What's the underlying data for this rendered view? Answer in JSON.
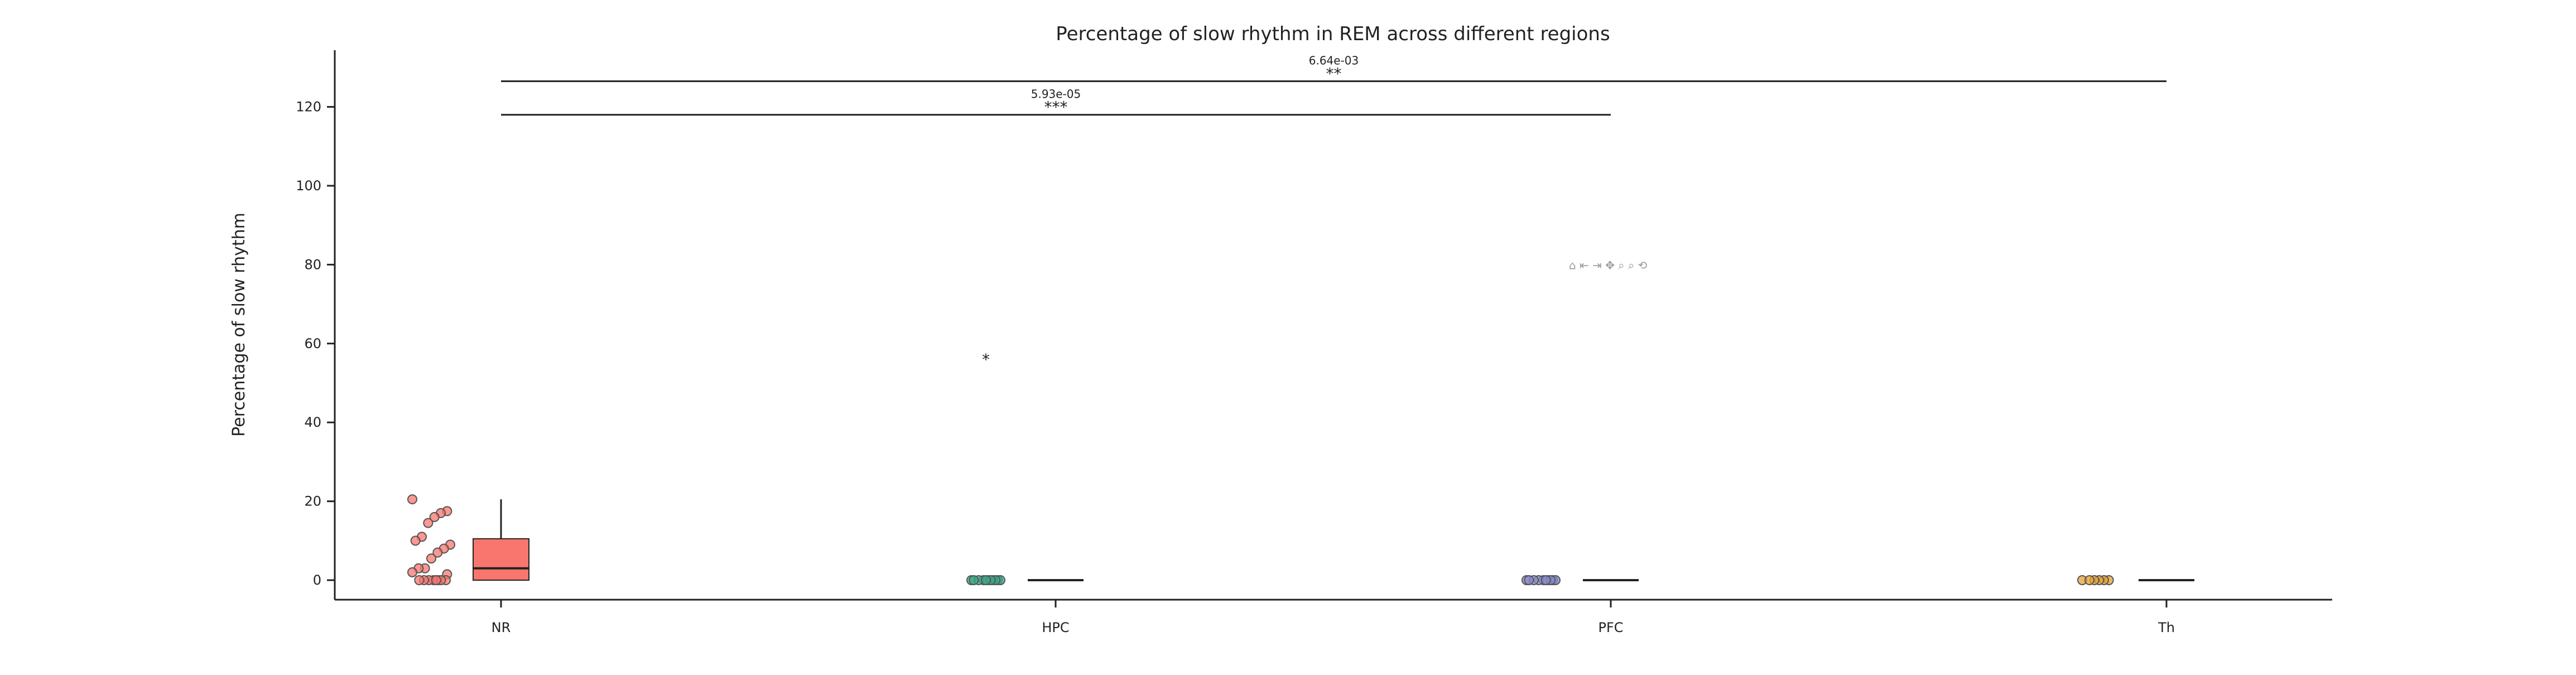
{
  "chart_data": {
    "type": "box",
    "title": "Percentage of slow rhythm in REM across different regions",
    "xlabel": "",
    "ylabel": "Percentage of slow rhythm",
    "categories": [
      "NR",
      "HPC",
      "PFC",
      "Th"
    ],
    "ylim": [
      -5,
      133
    ],
    "yticks": [
      0,
      20,
      40,
      60,
      80,
      100,
      120
    ],
    "grid": false,
    "legend": "none",
    "colors": {
      "NR": "#f8766d",
      "HPC": "#3aaa8a",
      "PFC": "#8a8ccc",
      "Th": "#e6a030",
      "axis": "#222222",
      "edge": "#555555"
    },
    "series": [
      {
        "name": "NR",
        "boxplot": {
          "whisker_low": 0,
          "q1": 0,
          "median": 3,
          "q3": 10.5,
          "whisker_high": 20.5
        },
        "points": [
          20.5,
          17.5,
          17,
          16,
          14.5,
          11,
          10,
          9,
          8,
          7,
          5.5,
          3,
          3,
          2,
          1.5,
          0,
          0,
          0,
          0,
          0,
          0,
          0,
          0
        ]
      },
      {
        "name": "HPC",
        "boxplot": {
          "whisker_low": 0,
          "q1": 0,
          "median": 0,
          "q3": 0,
          "whisker_high": 0
        },
        "points": [
          0,
          0,
          0,
          0,
          0,
          0,
          0,
          0,
          0,
          0,
          0
        ]
      },
      {
        "name": "PFC",
        "boxplot": {
          "whisker_low": 0,
          "q1": 0,
          "median": 0,
          "q3": 0,
          "whisker_high": 0
        },
        "points": [
          0,
          0,
          0,
          0,
          0,
          0,
          0,
          0,
          0,
          0
        ]
      },
      {
        "name": "Th",
        "boxplot": {
          "whisker_low": 0,
          "q1": 0,
          "median": 0,
          "q3": 0,
          "whisker_high": 0
        },
        "points": [
          0,
          0,
          0,
          0,
          0,
          0
        ]
      }
    ],
    "outlier_markers": [
      {
        "category": "HPC",
        "y": 56,
        "symbol": "*"
      }
    ],
    "significance": [
      {
        "from": "NR",
        "to": "PFC",
        "y": 118,
        "p": "5.93e-05",
        "stars": "***"
      },
      {
        "from": "NR",
        "to": "Th",
        "y": 126.5,
        "p": "6.64e-03",
        "stars": "**"
      }
    ]
  },
  "toolbar": {
    "icons": [
      "home-icon",
      "back-icon",
      "forward-icon",
      "pan-icon",
      "zoom-icon",
      "zoom-out-icon",
      "reset-icon"
    ],
    "glyphs": "⌂ ⇤ ⇥ ✥ ⌕ ⌕ ⟲",
    "y_level": 80,
    "category": "PFC"
  }
}
